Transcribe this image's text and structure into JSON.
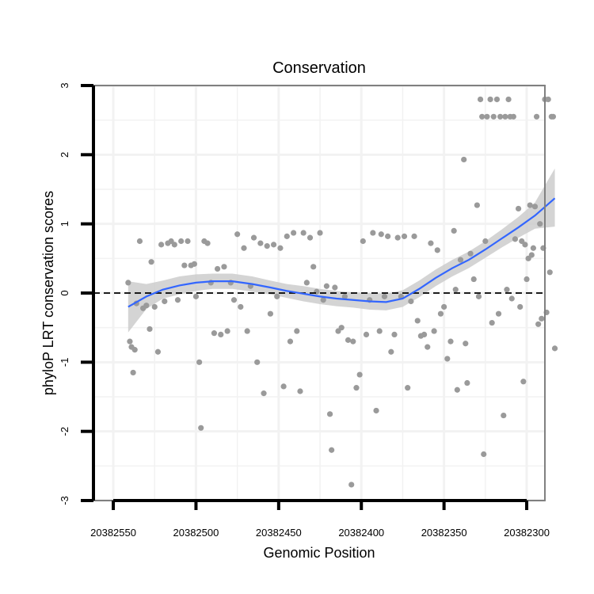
{
  "chart_data": {
    "type": "scatter",
    "title": "Conservation",
    "xlabel": "Genomic Position",
    "ylabel": "phyloP LRT conservation scores",
    "x_reversed": true,
    "xlim": [
      20382562,
      20382289
    ],
    "ylim": [
      -3,
      3
    ],
    "x_ticks": [
      20382550,
      20382500,
      20382450,
      20382400,
      20382350,
      20382300
    ],
    "x_tick_labels": [
      "20382550",
      "20382500",
      "20382450",
      "20382400",
      "20382350",
      "20382300"
    ],
    "y_ticks": [
      -3,
      -2,
      -1,
      0,
      1,
      2,
      3
    ],
    "y_tick_labels": [
      "-3",
      "-2",
      "-1",
      "0",
      "1",
      "2",
      "3"
    ],
    "grid": true,
    "reference_line": {
      "y": 0,
      "style": "dashed"
    },
    "colors": {
      "points": "#9a9a9a",
      "smooth": "#3366ff",
      "ribbon": "#cccccc",
      "grid": "#f2f2f2",
      "frame": "#808080"
    },
    "series": [
      {
        "name": "points",
        "kind": "scatter",
        "points": [
          [
            20382541,
            0.15
          ],
          [
            20382540,
            -0.7
          ],
          [
            20382539,
            -0.78
          ],
          [
            20382538,
            -1.15
          ],
          [
            20382537,
            -0.82
          ],
          [
            20382536,
            -0.15
          ],
          [
            20382534,
            0.75
          ],
          [
            20382532,
            -0.22
          ],
          [
            20382530,
            -0.18
          ],
          [
            20382528,
            -0.52
          ],
          [
            20382527,
            0.45
          ],
          [
            20382525,
            -0.2
          ],
          [
            20382523,
            -0.85
          ],
          [
            20382521,
            0.7
          ],
          [
            20382519,
            -0.12
          ],
          [
            20382517,
            0.72
          ],
          [
            20382515,
            0.75
          ],
          [
            20382513,
            0.7
          ],
          [
            20382511,
            -0.1
          ],
          [
            20382509,
            0.75
          ],
          [
            20382507,
            0.4
          ],
          [
            20382505,
            0.75
          ],
          [
            20382503,
            0.4
          ],
          [
            20382501,
            0.42
          ],
          [
            20382500,
            -0.05
          ],
          [
            20382498,
            -1.0
          ],
          [
            20382497,
            -1.95
          ],
          [
            20382495,
            0.75
          ],
          [
            20382493,
            0.72
          ],
          [
            20382491,
            0.15
          ],
          [
            20382489,
            -0.58
          ],
          [
            20382487,
            0.35
          ],
          [
            20382485,
            -0.6
          ],
          [
            20382483,
            0.38
          ],
          [
            20382481,
            -0.55
          ],
          [
            20382479,
            0.15
          ],
          [
            20382477,
            -0.1
          ],
          [
            20382475,
            0.85
          ],
          [
            20382473,
            -0.2
          ],
          [
            20382471,
            0.65
          ],
          [
            20382469,
            -0.55
          ],
          [
            20382467,
            0.1
          ],
          [
            20382465,
            0.8
          ],
          [
            20382463,
            -1.0
          ],
          [
            20382461,
            0.72
          ],
          [
            20382459,
            -1.45
          ],
          [
            20382457,
            0.68
          ],
          [
            20382455,
            -0.3
          ],
          [
            20382453,
            0.7
          ],
          [
            20382451,
            -0.05
          ],
          [
            20382449,
            0.65
          ],
          [
            20382447,
            -1.35
          ],
          [
            20382445,
            0.82
          ],
          [
            20382443,
            -0.7
          ],
          [
            20382441,
            0.87
          ],
          [
            20382439,
            -0.55
          ],
          [
            20382437,
            -1.42
          ],
          [
            20382435,
            0.87
          ],
          [
            20382433,
            0.15
          ],
          [
            20382431,
            0.8
          ],
          [
            20382429,
            0.38
          ],
          [
            20382427,
            0.02
          ],
          [
            20382425,
            0.87
          ],
          [
            20382423,
            -0.1
          ],
          [
            20382421,
            0.1
          ],
          [
            20382419,
            -1.75
          ],
          [
            20382418,
            -2.27
          ],
          [
            20382416,
            0.08
          ],
          [
            20382414,
            -0.55
          ],
          [
            20382412,
            -0.5
          ],
          [
            20382410,
            -0.05
          ],
          [
            20382408,
            -0.68
          ],
          [
            20382406,
            -2.77
          ],
          [
            20382405,
            -0.7
          ],
          [
            20382403,
            -1.37
          ],
          [
            20382401,
            -1.18
          ],
          [
            20382399,
            0.75
          ],
          [
            20382397,
            -0.6
          ],
          [
            20382395,
            -0.1
          ],
          [
            20382393,
            0.87
          ],
          [
            20382391,
            -1.7
          ],
          [
            20382389,
            -0.55
          ],
          [
            20382388,
            0.85
          ],
          [
            20382386,
            -0.05
          ],
          [
            20382384,
            0.82
          ],
          [
            20382382,
            -0.85
          ],
          [
            20382380,
            -0.6
          ],
          [
            20382378,
            0.8
          ],
          [
            20382376,
            -0.05
          ],
          [
            20382374,
            0.82
          ],
          [
            20382372,
            -1.37
          ],
          [
            20382370,
            -0.12
          ],
          [
            20382368,
            0.82
          ],
          [
            20382366,
            -0.4
          ],
          [
            20382364,
            -0.62
          ],
          [
            20382362,
            -0.6
          ],
          [
            20382360,
            -0.78
          ],
          [
            20382358,
            0.72
          ],
          [
            20382356,
            -0.55
          ],
          [
            20382354,
            0.62
          ],
          [
            20382352,
            -0.3
          ],
          [
            20382350,
            -0.2
          ],
          [
            20382348,
            -0.95
          ],
          [
            20382346,
            -0.7
          ],
          [
            20382344,
            0.9
          ],
          [
            20382343,
            0.05
          ],
          [
            20382342,
            -1.4
          ],
          [
            20382340,
            0.48
          ],
          [
            20382338,
            1.93
          ],
          [
            20382337,
            -0.73
          ],
          [
            20382336,
            -1.3
          ],
          [
            20382334,
            0.57
          ],
          [
            20382332,
            0.2
          ],
          [
            20382330,
            1.27
          ],
          [
            20382329,
            -0.05
          ],
          [
            20382328,
            2.8
          ],
          [
            20382327,
            2.55
          ],
          [
            20382326,
            -2.33
          ],
          [
            20382325,
            0.75
          ],
          [
            20382324,
            2.55
          ],
          [
            20382322,
            2.8
          ],
          [
            20382321,
            -0.43
          ],
          [
            20382320,
            2.55
          ],
          [
            20382318,
            2.8
          ],
          [
            20382317,
            -0.3
          ],
          [
            20382316,
            2.55
          ],
          [
            20382314,
            -1.77
          ],
          [
            20382313,
            2.55
          ],
          [
            20382312,
            0.05
          ],
          [
            20382311,
            2.8
          ],
          [
            20382310,
            2.55
          ],
          [
            20382309,
            -0.08
          ],
          [
            20382308,
            2.55
          ],
          [
            20382307,
            0.78
          ],
          [
            20382305,
            1.22
          ],
          [
            20382304,
            -0.2
          ],
          [
            20382303,
            0.75
          ],
          [
            20382302,
            -1.28
          ],
          [
            20382301,
            0.7
          ],
          [
            20382300,
            0.2
          ],
          [
            20382299,
            0.5
          ],
          [
            20382298,
            1.27
          ],
          [
            20382297,
            0.55
          ],
          [
            20382296,
            0.65
          ],
          [
            20382295,
            1.25
          ],
          [
            20382294,
            2.55
          ],
          [
            20382293,
            -0.45
          ],
          [
            20382292,
            1.0
          ],
          [
            20382291,
            -0.37
          ],
          [
            20382290,
            0.65
          ],
          [
            20382289,
            2.8
          ],
          [
            20382288,
            -0.28
          ],
          [
            20382287,
            2.8
          ],
          [
            20382286,
            0.3
          ],
          [
            20382285,
            2.55
          ],
          [
            20382284,
            2.55
          ],
          [
            20382283,
            -0.8
          ]
        ]
      },
      {
        "name": "loess fit",
        "kind": "line",
        "x": [
          20382541,
          20382530,
          20382520,
          20382510,
          20382500,
          20382490,
          20382478,
          20382466,
          20382455,
          20382445,
          20382435,
          20382425,
          20382415,
          20382405,
          20382395,
          20382385,
          20382375,
          20382365,
          20382355,
          20382345,
          20382335,
          20382325,
          20382315,
          20382305,
          20382295,
          20382283
        ],
        "y": [
          -0.2,
          -0.05,
          0.05,
          0.11,
          0.15,
          0.17,
          0.17,
          0.13,
          0.08,
          0.03,
          -0.01,
          -0.05,
          -0.08,
          -0.1,
          -0.12,
          -0.13,
          -0.08,
          0.06,
          0.22,
          0.36,
          0.48,
          0.63,
          0.79,
          0.95,
          1.12,
          1.37
        ]
      },
      {
        "name": "confidence band",
        "kind": "ribbon",
        "x": [
          20382541,
          20382530,
          20382520,
          20382510,
          20382500,
          20382490,
          20382478,
          20382466,
          20382455,
          20382445,
          20382435,
          20382425,
          20382415,
          20382405,
          20382395,
          20382385,
          20382375,
          20382365,
          20382355,
          20382345,
          20382335,
          20382325,
          20382315,
          20382305,
          20382295,
          20382283
        ],
        "lower": [
          -0.57,
          -0.23,
          -0.08,
          -0.02,
          0.03,
          0.06,
          0.06,
          0.02,
          -0.02,
          -0.07,
          -0.12,
          -0.16,
          -0.19,
          -0.21,
          -0.24,
          -0.25,
          -0.2,
          -0.06,
          0.1,
          0.24,
          0.36,
          0.51,
          0.66,
          0.8,
          0.93,
          0.96
        ],
        "upper": [
          0.17,
          0.13,
          0.18,
          0.24,
          0.27,
          0.28,
          0.28,
          0.24,
          0.18,
          0.13,
          0.1,
          0.06,
          0.03,
          0.01,
          0.0,
          -0.01,
          0.04,
          0.18,
          0.34,
          0.48,
          0.6,
          0.75,
          0.92,
          1.1,
          1.31,
          1.8
        ]
      }
    ]
  }
}
